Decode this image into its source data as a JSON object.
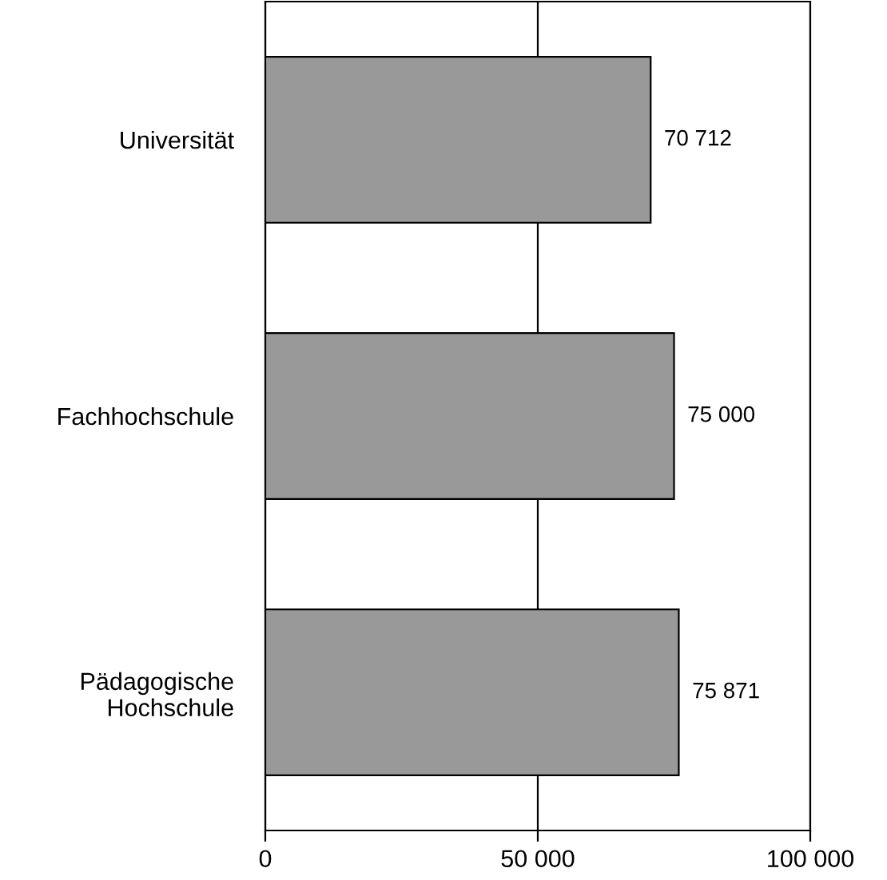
{
  "chart_data": {
    "type": "bar",
    "orientation": "horizontal",
    "categories": [
      "Universität",
      "Fachhochschule",
      "Pädagogische\nHochschule"
    ],
    "values": [
      70712,
      75000,
      75871
    ],
    "value_labels": [
      "70 712",
      "75 000",
      "75 871"
    ],
    "color": "#999999",
    "xlim": [
      0,
      100000
    ],
    "xticks": [
      0,
      {
        "value": 50000,
        "label": "50 000"
      },
      {
        "value": 100000,
        "label": "100 000"
      }
    ],
    "grid": "x",
    "legend": false
  }
}
